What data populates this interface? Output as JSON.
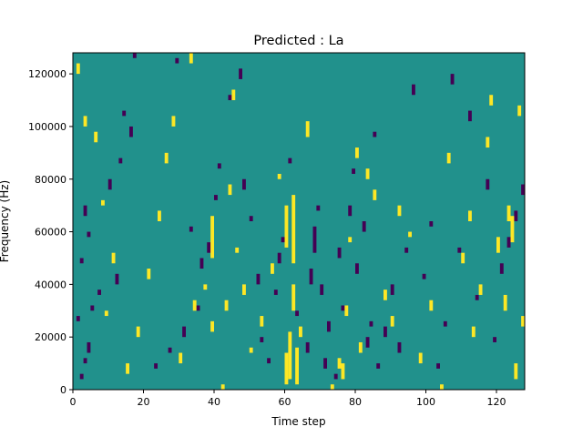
{
  "chart_data": {
    "type": "heatmap",
    "title": "Predicted : La",
    "xlabel": "Time step",
    "ylabel": "Frequency (Hz)",
    "xlim": [
      0,
      128
    ],
    "ylim": [
      0,
      128000
    ],
    "x_ticks": [
      0,
      20,
      40,
      60,
      80,
      100,
      120
    ],
    "x_tick_labels": [
      "0",
      "20",
      "40",
      "60",
      "80",
      "100",
      "120"
    ],
    "y_ticks": [
      0,
      20000,
      40000,
      60000,
      80000,
      100000,
      120000
    ],
    "y_tick_labels": [
      "0",
      "20000",
      "40000",
      "60000",
      "80000",
      "100000",
      "120000"
    ],
    "grid": false,
    "legend": "none",
    "colors": {
      "background": "#21918c",
      "low": "#440154",
      "high": "#fde725"
    },
    "low_cells": [
      [
        2,
        4000,
        6000
      ],
      [
        3,
        10000,
        12000
      ],
      [
        4,
        14000,
        18000
      ],
      [
        1,
        26000,
        28000
      ],
      [
        5,
        30000,
        32000
      ],
      [
        7,
        36000,
        38000
      ],
      [
        12,
        40000,
        44000
      ],
      [
        2,
        48000,
        50000
      ],
      [
        4,
        58000,
        60000
      ],
      [
        3,
        66000,
        70000
      ],
      [
        10,
        76000,
        80000
      ],
      [
        13,
        86000,
        88000
      ],
      [
        16,
        96000,
        100000
      ],
      [
        14,
        104000,
        106000
      ],
      [
        17,
        126000,
        128000
      ],
      [
        29,
        124000,
        126000
      ],
      [
        23,
        8000,
        10000
      ],
      [
        27,
        14000,
        16000
      ],
      [
        31,
        20000,
        24000
      ],
      [
        35,
        30000,
        32000
      ],
      [
        36,
        46000,
        50000
      ],
      [
        38,
        52000,
        56000
      ],
      [
        33,
        60000,
        62000
      ],
      [
        40,
        72000,
        74000
      ],
      [
        41,
        84000,
        86000
      ],
      [
        44,
        110000,
        112000
      ],
      [
        47,
        118000,
        122000
      ],
      [
        48,
        76000,
        80000
      ],
      [
        50,
        64000,
        66000
      ],
      [
        52,
        40000,
        44000
      ],
      [
        53,
        18000,
        20000
      ],
      [
        55,
        10000,
        12000
      ],
      [
        57,
        36000,
        38000
      ],
      [
        58,
        48000,
        52000
      ],
      [
        59,
        56000,
        58000
      ],
      [
        61,
        86000,
        88000
      ],
      [
        63,
        28000,
        30000
      ],
      [
        66,
        14000,
        18000
      ],
      [
        67,
        40000,
        46000
      ],
      [
        68,
        52000,
        62000
      ],
      [
        69,
        68000,
        70000
      ],
      [
        70,
        36000,
        40000
      ],
      [
        71,
        8000,
        12000
      ],
      [
        72,
        22000,
        26000
      ],
      [
        74,
        4000,
        6000
      ],
      [
        75,
        50000,
        54000
      ],
      [
        76,
        30000,
        32000
      ],
      [
        78,
        66000,
        70000
      ],
      [
        79,
        82000,
        84000
      ],
      [
        80,
        44000,
        48000
      ],
      [
        82,
        60000,
        64000
      ],
      [
        83,
        16000,
        20000
      ],
      [
        84,
        24000,
        26000
      ],
      [
        85,
        96000,
        98000
      ],
      [
        86,
        8000,
        10000
      ],
      [
        88,
        20000,
        24000
      ],
      [
        90,
        36000,
        40000
      ],
      [
        92,
        14000,
        18000
      ],
      [
        94,
        52000,
        54000
      ],
      [
        96,
        112000,
        116000
      ],
      [
        99,
        42000,
        44000
      ],
      [
        101,
        62000,
        64000
      ],
      [
        103,
        8000,
        10000
      ],
      [
        105,
        24000,
        26000
      ],
      [
        107,
        116000,
        120000
      ],
      [
        109,
        52000,
        54000
      ],
      [
        112,
        102000,
        106000
      ],
      [
        114,
        34000,
        36000
      ],
      [
        117,
        76000,
        80000
      ],
      [
        119,
        18000,
        20000
      ],
      [
        121,
        44000,
        48000
      ],
      [
        123,
        54000,
        58000
      ],
      [
        125,
        64000,
        68000
      ],
      [
        127,
        74000,
        78000
      ]
    ],
    "high_cells": [
      [
        1,
        120000,
        124000
      ],
      [
        3,
        100000,
        104000
      ],
      [
        6,
        94000,
        98000
      ],
      [
        8,
        70000,
        72000
      ],
      [
        11,
        48000,
        52000
      ],
      [
        9,
        28000,
        30000
      ],
      [
        15,
        6000,
        10000
      ],
      [
        18,
        20000,
        24000
      ],
      [
        21,
        42000,
        46000
      ],
      [
        24,
        64000,
        68000
      ],
      [
        26,
        86000,
        90000
      ],
      [
        28,
        100000,
        104000
      ],
      [
        33,
        124000,
        128000
      ],
      [
        30,
        10000,
        14000
      ],
      [
        34,
        30000,
        34000
      ],
      [
        37,
        38000,
        40000
      ],
      [
        39,
        50000,
        66000
      ],
      [
        39,
        22000,
        26000
      ],
      [
        42,
        0,
        2000
      ],
      [
        43,
        30000,
        34000
      ],
      [
        44,
        74000,
        78000
      ],
      [
        45,
        110000,
        114000
      ],
      [
        46,
        52000,
        54000
      ],
      [
        48,
        36000,
        40000
      ],
      [
        50,
        14000,
        16000
      ],
      [
        53,
        24000,
        28000
      ],
      [
        56,
        44000,
        48000
      ],
      [
        58,
        80000,
        82000
      ],
      [
        60,
        2000,
        14000
      ],
      [
        60,
        54000,
        70000
      ],
      [
        61,
        4000,
        22000
      ],
      [
        62,
        48000,
        74000
      ],
      [
        63,
        2000,
        16000
      ],
      [
        62,
        30000,
        40000
      ],
      [
        64,
        20000,
        24000
      ],
      [
        66,
        96000,
        102000
      ],
      [
        73,
        0,
        2000
      ],
      [
        75,
        8000,
        12000
      ],
      [
        76,
        4000,
        10000
      ],
      [
        77,
        28000,
        32000
      ],
      [
        78,
        56000,
        58000
      ],
      [
        80,
        88000,
        92000
      ],
      [
        81,
        14000,
        18000
      ],
      [
        83,
        80000,
        84000
      ],
      [
        85,
        72000,
        76000
      ],
      [
        88,
        34000,
        38000
      ],
      [
        90,
        24000,
        28000
      ],
      [
        92,
        66000,
        70000
      ],
      [
        95,
        58000,
        60000
      ],
      [
        98,
        10000,
        14000
      ],
      [
        101,
        30000,
        34000
      ],
      [
        104,
        0,
        2000
      ],
      [
        106,
        86000,
        90000
      ],
      [
        110,
        48000,
        52000
      ],
      [
        112,
        64000,
        68000
      ],
      [
        113,
        20000,
        24000
      ],
      [
        115,
        36000,
        40000
      ],
      [
        117,
        92000,
        96000
      ],
      [
        118,
        108000,
        112000
      ],
      [
        120,
        52000,
        58000
      ],
      [
        122,
        30000,
        36000
      ],
      [
        123,
        64000,
        70000
      ],
      [
        124,
        56000,
        66000
      ],
      [
        125,
        4000,
        10000
      ],
      [
        126,
        104000,
        108000
      ],
      [
        127,
        24000,
        28000
      ]
    ]
  }
}
